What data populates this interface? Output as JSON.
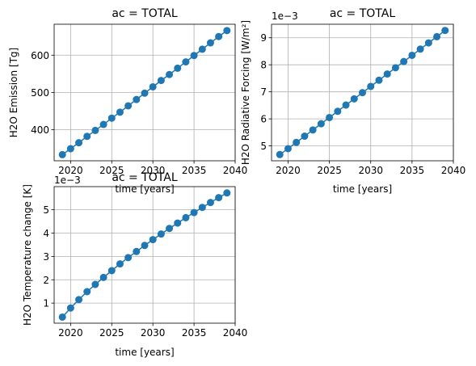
{
  "chart_data": [
    {
      "type": "line",
      "title": "ac = TOTAL",
      "xlabel": "time [years]",
      "ylabel": "H2O Emission [Tg]",
      "x": [
        2019,
        2020,
        2021,
        2022,
        2023,
        2024,
        2025,
        2026,
        2027,
        2028,
        2029,
        2030,
        2031,
        2032,
        2033,
        2034,
        2035,
        2036,
        2037,
        2038,
        2039
      ],
      "series": [
        {
          "values": [
            333,
            349,
            365,
            382,
            398,
            414,
            431,
            447,
            464,
            481,
            498,
            515,
            532,
            548,
            565,
            582,
            599,
            616,
            633,
            650,
            666
          ]
        }
      ],
      "xlim": [
        2018.0,
        2040.0
      ],
      "ylim": [
        316.5,
        683.0
      ],
      "xticks": [
        2020,
        2025,
        2030,
        2035,
        2040
      ],
      "yticks": [
        400,
        500,
        600
      ],
      "offset_label": "",
      "grid": true,
      "color": "#1f77b4"
    },
    {
      "type": "line",
      "title": "ac = TOTAL",
      "xlabel": "time [years]",
      "ylabel": "H2O Radiative Forcing [W/m²]",
      "x": [
        2019,
        2020,
        2021,
        2022,
        2023,
        2024,
        2025,
        2026,
        2027,
        2028,
        2029,
        2030,
        2031,
        2032,
        2033,
        2034,
        2035,
        2036,
        2037,
        2038,
        2039
      ],
      "series": [
        {
          "values": [
            4.68,
            4.9,
            5.13,
            5.36,
            5.59,
            5.82,
            6.05,
            6.28,
            6.51,
            6.74,
            6.97,
            7.2,
            7.43,
            7.66,
            7.89,
            8.12,
            8.35,
            8.58,
            8.81,
            9.04,
            9.27
          ]
        }
      ],
      "xlim": [
        2018.0,
        2040.0
      ],
      "ylim": [
        4.45,
        9.5
      ],
      "xticks": [
        2020,
        2025,
        2030,
        2035,
        2040
      ],
      "yticks": [
        5,
        6,
        7,
        8,
        9
      ],
      "offset_label": "1e−3",
      "grid": true,
      "color": "#1f77b4"
    },
    {
      "type": "line",
      "title": "ac = TOTAL",
      "xlabel": "time [years]",
      "ylabel": "H2O Temperature change [K]",
      "x": [
        2019,
        2020,
        2021,
        2022,
        2023,
        2024,
        2025,
        2026,
        2027,
        2028,
        2029,
        2030,
        2031,
        2032,
        2033,
        2034,
        2035,
        2036,
        2037,
        2038,
        2039
      ],
      "series": [
        {
          "values": [
            0.4,
            0.79,
            1.15,
            1.49,
            1.8,
            2.1,
            2.39,
            2.68,
            2.95,
            3.21,
            3.47,
            3.72,
            3.96,
            4.2,
            4.43,
            4.66,
            4.88,
            5.1,
            5.31,
            5.52,
            5.72
          ]
        }
      ],
      "xlim": [
        2018.0,
        2040.0
      ],
      "ylim": [
        0.14,
        5.99
      ],
      "xticks": [
        2020,
        2025,
        2030,
        2035,
        2040
      ],
      "yticks": [
        1,
        2,
        3,
        4,
        5
      ],
      "offset_label": "1e−3",
      "grid": true,
      "color": "#1f77b4"
    }
  ]
}
